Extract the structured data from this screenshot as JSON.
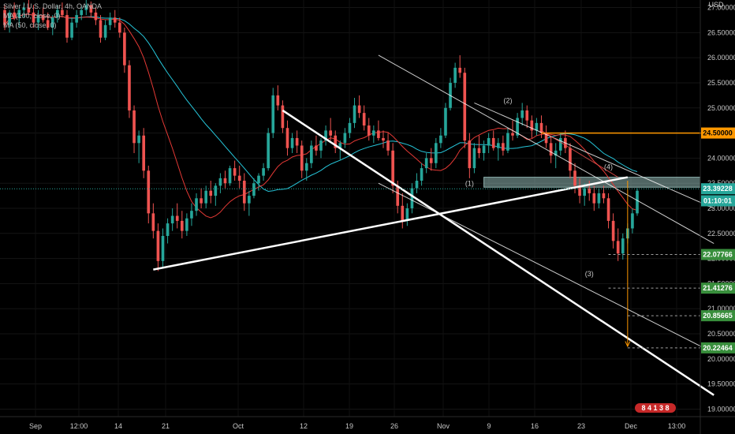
{
  "legend": {
    "symbol": "Silver / U.S. Dollar, 4h, OANDA",
    "ma1": "MA (100, close, 0)",
    "ma2": "MA (50, close, 0)"
  },
  "colors": {
    "background": "#000000",
    "candle_up": "#26a69a",
    "candle_down": "#ef5350",
    "ma_100": "#26c6da",
    "ma_50": "#e53935",
    "trend_line": "#ffffff",
    "resistance": "#ff9800",
    "zone": "#b2dfdb",
    "target_label": "#388e3c",
    "current_label": "#26a69a"
  },
  "chart_data": {
    "type": "candlestick",
    "currency": "USD",
    "ylim": [
      18.85,
      27.15
    ],
    "y_ticks": [
      "27.00000",
      "26.50000",
      "26.00000",
      "25.50000",
      "25.00000",
      "24.50000",
      "24.00000",
      "23.50000",
      "23.00000",
      "22.50000",
      "22.00000",
      "21.50000",
      "21.00000",
      "20.50000",
      "20.00000",
      "19.50000",
      "19.00000"
    ],
    "x_ticks": [
      "Sep",
      "12:00",
      "14",
      "21",
      "Oct",
      "12",
      "19",
      "26",
      "Nov",
      "9",
      "16",
      "23",
      "Dec",
      "13:00"
    ],
    "ohlc": [
      [
        26.95,
        27.05,
        26.55,
        26.65
      ],
      [
        26.65,
        26.95,
        26.5,
        26.9
      ],
      [
        26.9,
        27.1,
        26.75,
        26.8
      ],
      [
        26.8,
        27.0,
        26.6,
        26.95
      ],
      [
        26.95,
        27.1,
        26.8,
        27.0
      ],
      [
        27.0,
        27.15,
        26.85,
        26.9
      ],
      [
        26.9,
        27.05,
        26.6,
        26.7
      ],
      [
        26.7,
        26.95,
        26.55,
        26.85
      ],
      [
        26.85,
        27.0,
        26.7,
        26.75
      ],
      [
        26.75,
        26.9,
        26.55,
        26.6
      ],
      [
        26.6,
        26.85,
        26.45,
        26.8
      ],
      [
        26.8,
        27.05,
        26.7,
        26.95
      ],
      [
        26.95,
        27.1,
        26.8,
        26.85
      ],
      [
        26.85,
        26.95,
        26.3,
        26.4
      ],
      [
        26.4,
        26.8,
        26.35,
        26.7
      ],
      [
        26.7,
        26.95,
        26.6,
        26.85
      ],
      [
        26.85,
        27.05,
        26.75,
        26.95
      ],
      [
        26.95,
        27.15,
        26.85,
        27.05
      ],
      [
        27.05,
        27.12,
        26.8,
        26.9
      ],
      [
        26.9,
        27.0,
        26.65,
        26.75
      ],
      [
        26.75,
        26.85,
        26.3,
        26.4
      ],
      [
        26.4,
        26.75,
        26.35,
        26.65
      ],
      [
        26.65,
        26.9,
        26.55,
        26.8
      ],
      [
        26.8,
        26.95,
        26.6,
        26.7
      ],
      [
        26.7,
        26.8,
        26.4,
        26.5
      ],
      [
        26.5,
        26.6,
        25.7,
        25.85
      ],
      [
        25.85,
        25.95,
        24.8,
        24.95
      ],
      [
        24.95,
        25.05,
        24.1,
        24.3
      ],
      [
        24.3,
        24.55,
        23.9,
        24.45
      ],
      [
        24.45,
        24.6,
        23.6,
        23.75
      ],
      [
        23.75,
        23.85,
        22.7,
        22.9
      ],
      [
        22.9,
        23.1,
        22.4,
        22.55
      ],
      [
        22.55,
        22.7,
        21.75,
        21.95
      ],
      [
        21.95,
        22.6,
        21.8,
        22.45
      ],
      [
        22.45,
        22.8,
        22.3,
        22.7
      ],
      [
        22.7,
        23.0,
        22.55,
        22.85
      ],
      [
        22.85,
        23.1,
        22.6,
        22.75
      ],
      [
        22.75,
        22.95,
        22.4,
        22.55
      ],
      [
        22.55,
        22.9,
        22.45,
        22.8
      ],
      [
        22.8,
        23.1,
        22.65,
        22.95
      ],
      [
        22.95,
        23.3,
        22.85,
        23.2
      ],
      [
        23.2,
        23.4,
        23.0,
        23.1
      ],
      [
        23.1,
        23.45,
        23.0,
        23.35
      ],
      [
        23.35,
        23.55,
        23.1,
        23.25
      ],
      [
        23.25,
        23.5,
        23.05,
        23.45
      ],
      [
        23.45,
        23.7,
        23.3,
        23.6
      ],
      [
        23.6,
        23.75,
        23.4,
        23.5
      ],
      [
        23.5,
        23.85,
        23.45,
        23.8
      ],
      [
        23.8,
        23.95,
        23.55,
        23.65
      ],
      [
        23.65,
        23.85,
        23.4,
        23.55
      ],
      [
        23.55,
        23.7,
        22.95,
        23.1
      ],
      [
        23.1,
        23.35,
        22.85,
        23.25
      ],
      [
        23.25,
        23.6,
        23.2,
        23.5
      ],
      [
        23.5,
        23.7,
        23.35,
        23.65
      ],
      [
        23.65,
        23.9,
        23.55,
        23.8
      ],
      [
        23.8,
        24.6,
        23.75,
        24.5
      ],
      [
        24.5,
        25.4,
        24.4,
        25.25
      ],
      [
        25.25,
        25.45,
        24.95,
        25.05
      ],
      [
        25.05,
        25.15,
        24.5,
        24.6
      ],
      [
        24.6,
        24.75,
        24.05,
        24.2
      ],
      [
        24.2,
        24.5,
        24.1,
        24.4
      ],
      [
        24.4,
        24.55,
        24.1,
        24.25
      ],
      [
        24.25,
        24.35,
        23.6,
        23.75
      ],
      [
        23.75,
        24.0,
        23.55,
        23.9
      ],
      [
        23.9,
        24.35,
        23.8,
        24.25
      ],
      [
        24.25,
        24.45,
        24.05,
        24.15
      ],
      [
        24.15,
        24.4,
        24.0,
        24.35
      ],
      [
        24.35,
        24.65,
        24.25,
        24.55
      ],
      [
        24.55,
        24.8,
        24.35,
        24.45
      ],
      [
        24.45,
        24.55,
        24.1,
        24.2
      ],
      [
        24.2,
        24.35,
        23.95,
        24.3
      ],
      [
        24.3,
        24.6,
        24.2,
        24.5
      ],
      [
        24.5,
        24.8,
        24.4,
        24.7
      ],
      [
        24.7,
        25.2,
        24.6,
        25.05
      ],
      [
        25.05,
        25.25,
        24.8,
        24.9
      ],
      [
        24.9,
        25.05,
        24.55,
        24.65
      ],
      [
        24.65,
        24.8,
        24.35,
        24.45
      ],
      [
        24.45,
        24.65,
        24.3,
        24.55
      ],
      [
        24.55,
        24.75,
        24.35,
        24.4
      ],
      [
        24.4,
        24.55,
        24.2,
        24.35
      ],
      [
        24.35,
        24.5,
        24.05,
        24.15
      ],
      [
        24.15,
        24.3,
        23.3,
        23.45
      ],
      [
        23.45,
        23.55,
        22.9,
        23.05
      ],
      [
        23.05,
        23.3,
        22.6,
        22.75
      ],
      [
        22.75,
        23.1,
        22.65,
        23.0
      ],
      [
        23.0,
        23.5,
        22.9,
        23.4
      ],
      [
        23.4,
        23.7,
        23.3,
        23.55
      ],
      [
        23.55,
        23.9,
        23.45,
        23.8
      ],
      [
        23.8,
        24.1,
        23.7,
        24.0
      ],
      [
        24.0,
        24.2,
        23.75,
        23.9
      ],
      [
        23.9,
        24.4,
        23.8,
        24.3
      ],
      [
        24.3,
        24.6,
        24.2,
        24.45
      ],
      [
        24.45,
        25.1,
        24.4,
        25.0
      ],
      [
        25.0,
        25.6,
        24.95,
        25.5
      ],
      [
        25.5,
        25.9,
        25.4,
        25.8
      ],
      [
        25.8,
        26.05,
        25.6,
        25.7
      ],
      [
        25.7,
        25.8,
        24.2,
        24.35
      ],
      [
        24.35,
        24.5,
        23.6,
        23.8
      ],
      [
        23.8,
        24.3,
        23.7,
        24.2
      ],
      [
        24.2,
        24.45,
        24.0,
        24.1
      ],
      [
        24.1,
        24.35,
        23.95,
        24.25
      ],
      [
        24.25,
        24.5,
        24.1,
        24.4
      ],
      [
        24.4,
        24.55,
        24.15,
        24.2
      ],
      [
        24.2,
        24.4,
        23.95,
        24.3
      ],
      [
        24.3,
        24.45,
        24.05,
        24.15
      ],
      [
        24.15,
        24.6,
        24.1,
        24.5
      ],
      [
        24.5,
        24.75,
        24.35,
        24.45
      ],
      [
        24.45,
        24.9,
        24.4,
        24.8
      ],
      [
        24.8,
        25.1,
        24.65,
        24.95
      ],
      [
        24.95,
        25.05,
        24.6,
        24.75
      ],
      [
        24.75,
        24.85,
        24.4,
        24.55
      ],
      [
        24.55,
        24.8,
        24.45,
        24.7
      ],
      [
        24.7,
        24.85,
        24.4,
        24.5
      ],
      [
        24.5,
        24.65,
        24.2,
        24.3
      ],
      [
        24.3,
        24.45,
        23.9,
        24.05
      ],
      [
        24.05,
        24.3,
        23.8,
        24.15
      ],
      [
        24.15,
        24.5,
        24.05,
        24.4
      ],
      [
        24.4,
        24.55,
        24.1,
        24.2
      ],
      [
        24.2,
        24.3,
        23.6,
        23.75
      ],
      [
        23.75,
        23.9,
        23.3,
        23.45
      ],
      [
        23.45,
        23.6,
        23.1,
        23.25
      ],
      [
        23.25,
        23.5,
        23.05,
        23.4
      ],
      [
        23.4,
        23.55,
        23.15,
        23.3
      ],
      [
        23.3,
        23.45,
        22.95,
        23.1
      ],
      [
        23.1,
        23.4,
        23.0,
        23.3
      ],
      [
        23.3,
        23.45,
        23.1,
        23.2
      ],
      [
        23.2,
        23.3,
        22.6,
        22.75
      ],
      [
        22.75,
        22.9,
        22.2,
        22.35
      ],
      [
        22.35,
        22.6,
        21.95,
        22.1
      ],
      [
        22.1,
        22.5,
        21.98,
        22.4
      ],
      [
        22.4,
        22.7,
        22.3,
        22.6
      ],
      [
        22.6,
        23.0,
        22.5,
        22.9
      ],
      [
        22.9,
        23.4,
        22.85,
        23.35
      ]
    ],
    "price_labels": {
      "resistance": "24.50000",
      "current": "23.39228",
      "countdown": "01:10:01",
      "targets": [
        "22.07766",
        "21.41276",
        "20.85665",
        "20.22464"
      ]
    },
    "wave_labels": [
      "(1)",
      "(2)",
      "(3)",
      "(4)"
    ],
    "badge": "8 4 1 3 8"
  }
}
